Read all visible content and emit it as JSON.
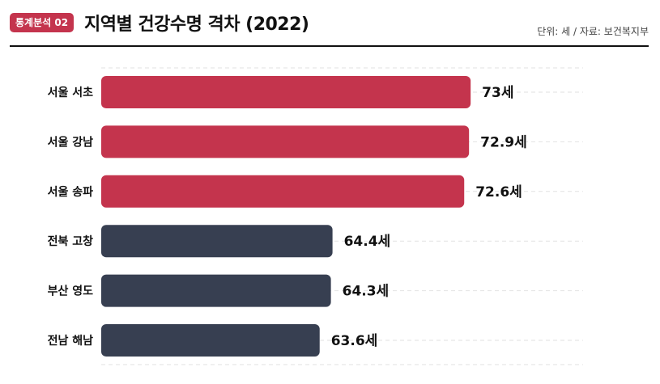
{
  "header": {
    "badge": "통계분석 02",
    "title": "지역별 건강수명 격차 (2022)",
    "unit_source": "단위: 세 / 자료: 보건복지부"
  },
  "chart_data": {
    "type": "bar",
    "orientation": "horizontal",
    "categories": [
      "서울 서초",
      "서울 강남",
      "서울 송파",
      "전북 고창",
      "부산 영도",
      "전남 해남"
    ],
    "values": [
      73,
      72.9,
      72.6,
      64.4,
      64.3,
      63.6
    ],
    "value_labels": [
      "73세",
      "72.9세",
      "72.6세",
      "64.4세",
      "64.3세",
      "63.6세"
    ],
    "bar_colors": [
      "#c4344d",
      "#c4344d",
      "#c4344d",
      "#373f51",
      "#373f51",
      "#373f51"
    ],
    "xlim": [
      50,
      80
    ],
    "grid": true,
    "xlabel": "",
    "ylabel": ""
  }
}
